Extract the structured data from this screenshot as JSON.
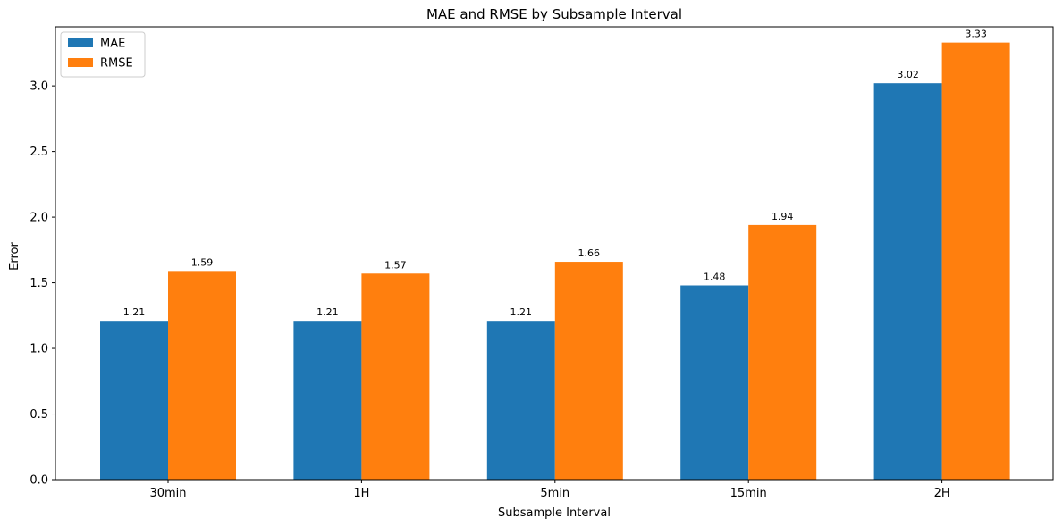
{
  "chart_data": {
    "type": "bar",
    "title": "MAE and RMSE by Subsample Interval",
    "xlabel": "Subsample Interval",
    "ylabel": "Error",
    "categories": [
      "30min",
      "1H",
      "5min",
      "15min",
      "2H"
    ],
    "series": [
      {
        "name": "MAE",
        "color": "#1f77b4",
        "values": [
          1.21,
          1.21,
          1.21,
          1.48,
          3.02
        ],
        "labels": [
          "1.21",
          "1.21",
          "1.21",
          "1.48",
          "3.02"
        ]
      },
      {
        "name": "RMSE",
        "color": "#ff7f0e",
        "values": [
          1.59,
          1.57,
          1.66,
          1.94,
          3.33
        ],
        "labels": [
          "1.59",
          "1.57",
          "1.66",
          "1.94",
          "3.33"
        ]
      }
    ],
    "ylim": [
      0,
      3.45
    ],
    "yticks": [
      "0.0",
      "0.5",
      "1.0",
      "1.5",
      "2.0",
      "2.5",
      "3.0"
    ],
    "grid": false,
    "legend_position": "top-left"
  }
}
